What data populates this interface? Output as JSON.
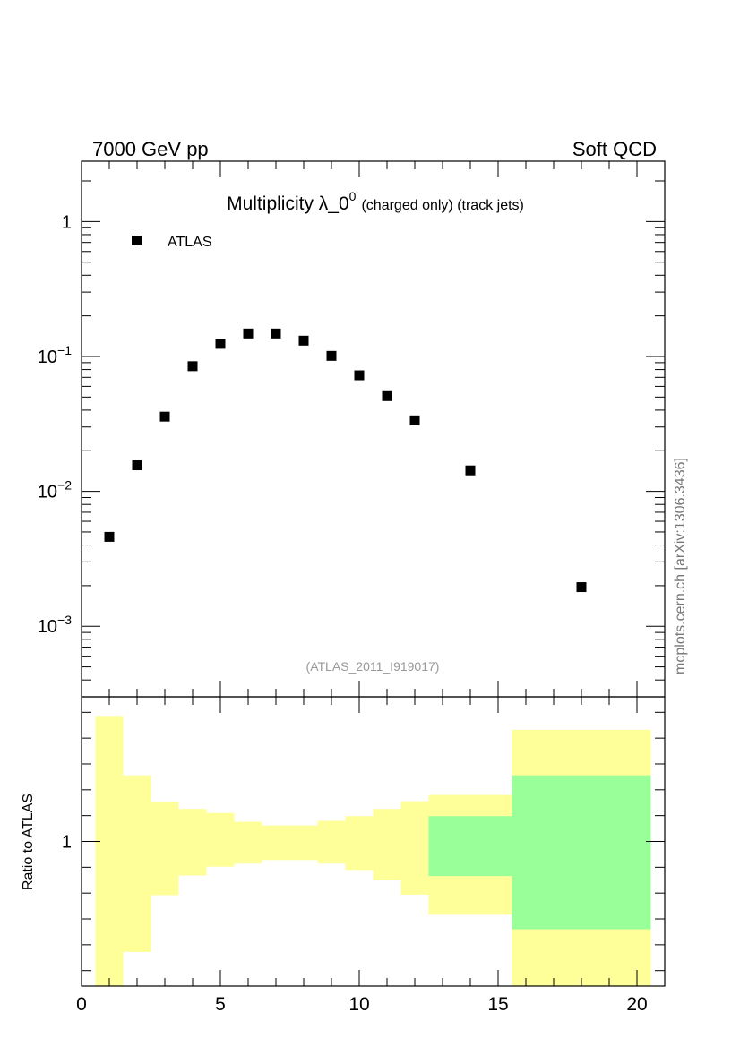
{
  "header": {
    "left_text": "7000 GeV pp",
    "right_text": "Soft QCD"
  },
  "side_text": "mcplots.cern.ch [arXiv:1306.3436]",
  "chart_data": [
    {
      "type": "scatter",
      "title": "Multiplicity λ_0",
      "title_superscript": "0",
      "title_suffix": "(charged only) (track jets)",
      "annotation": "(ATLAS_2011_I919017)",
      "legend": {
        "placement": "top-left",
        "entries": [
          "ATLAS"
        ]
      },
      "xlim": [
        0,
        21
      ],
      "ylim": [
        0.0003,
        2.8
      ],
      "yscale": "log",
      "y_tick_labels": [
        {
          "value": 1,
          "base": "1",
          "exp": ""
        },
        {
          "value": 0.1,
          "base": "10",
          "exp": "−1"
        },
        {
          "value": 0.01,
          "base": "10",
          "exp": "−2"
        },
        {
          "value": 0.001,
          "base": "10",
          "exp": "−3"
        }
      ],
      "series": [
        {
          "name": "ATLAS",
          "marker": "square",
          "color": "#000000",
          "x": [
            1,
            2,
            3,
            4,
            5,
            6,
            7,
            8,
            9,
            10,
            11,
            12,
            14,
            18
          ],
          "y": [
            0.0046,
            0.0156,
            0.0358,
            0.0847,
            0.124,
            0.148,
            0.148,
            0.131,
            0.101,
            0.0725,
            0.0508,
            0.0336,
            0.0143,
            0.00195
          ]
        }
      ]
    },
    {
      "type": "area",
      "ylabel": "Ratio to ATLAS",
      "xlim": [
        0,
        21
      ],
      "ylim": [
        0.72,
        1.28
      ],
      "x_tick_labels": [
        "0",
        "5",
        "10",
        "15",
        "20"
      ],
      "y_tick_labels": [
        "1"
      ],
      "bands": {
        "colors": {
          "total": "#ffff99",
          "stat": "#99ff99"
        },
        "bins": [
          {
            "x_low": 0.5,
            "x_high": 1.5,
            "total_low": 0.72,
            "total_high": 1.243,
            "stat_low": 1.0,
            "stat_high": 1.0
          },
          {
            "x_low": 1.5,
            "x_high": 2.5,
            "total_low": 0.786,
            "total_high": 1.128,
            "stat_low": 1.0,
            "stat_high": 1.0
          },
          {
            "x_low": 2.5,
            "x_high": 3.5,
            "total_low": 0.896,
            "total_high": 1.076,
            "stat_low": 1.0,
            "stat_high": 1.0
          },
          {
            "x_low": 3.5,
            "x_high": 4.5,
            "total_low": 0.934,
            "total_high": 1.063,
            "stat_low": 1.0,
            "stat_high": 1.0
          },
          {
            "x_low": 4.5,
            "x_high": 5.5,
            "total_low": 0.951,
            "total_high": 1.055,
            "stat_low": 1.0,
            "stat_high": 1.0
          },
          {
            "x_low": 5.5,
            "x_high": 6.5,
            "total_low": 0.957,
            "total_high": 1.038,
            "stat_low": 1.0,
            "stat_high": 1.0
          },
          {
            "x_low": 6.5,
            "x_high": 8.5,
            "total_low": 0.964,
            "total_high": 1.031,
            "stat_low": 1.0,
            "stat_high": 1.0
          },
          {
            "x_low": 8.5,
            "x_high": 9.5,
            "total_low": 0.957,
            "total_high": 1.04,
            "stat_low": 1.0,
            "stat_high": 1.0
          },
          {
            "x_low": 9.5,
            "x_high": 10.5,
            "total_low": 0.945,
            "total_high": 1.049,
            "stat_low": 1.0,
            "stat_high": 1.0
          },
          {
            "x_low": 10.5,
            "x_high": 11.5,
            "total_low": 0.925,
            "total_high": 1.063,
            "stat_low": 1.0,
            "stat_high": 1.0
          },
          {
            "x_low": 11.5,
            "x_high": 12.5,
            "total_low": 0.897,
            "total_high": 1.078,
            "stat_low": 1.0,
            "stat_high": 1.0
          },
          {
            "x_low": 12.5,
            "x_high": 15.5,
            "total_low": 0.858,
            "total_high": 1.09,
            "stat_low": 0.933,
            "stat_high": 1.049
          },
          {
            "x_low": 15.5,
            "x_high": 20.5,
            "total_low": 0.72,
            "total_high": 1.216,
            "stat_low": 0.83,
            "stat_high": 1.128
          }
        ]
      }
    }
  ]
}
